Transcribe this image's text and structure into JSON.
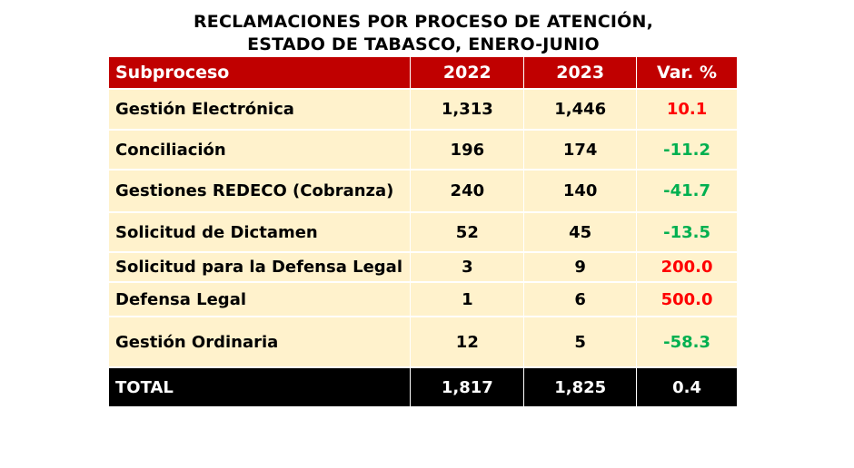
{
  "title_line1": "RECLAMACIONES POR PROCESO DE ATENCIÓN,",
  "title_line2": "ESTADO DE TABASCO, ENERO-JUNIO",
  "colors": {
    "header": "#c00000",
    "row": "#fff2cc",
    "increase": "#ff0000",
    "decrease": "#00b050",
    "total": "#000000"
  },
  "chart_data": {
    "type": "table",
    "columns": [
      "Subproceso",
      "2022",
      "2023",
      "Var. %"
    ],
    "rows": [
      [
        "Gestión Electrónica",
        "1,313",
        "1,446",
        "10.1"
      ],
      [
        "Conciliación",
        "196",
        "174",
        "-11.2"
      ],
      [
        "Gestiones REDECO (Cobranza)",
        "240",
        "140",
        "-41.7"
      ],
      [
        "Solicitud de Dictamen",
        "52",
        "45",
        "-13.5"
      ],
      [
        "Solicitud para la Defensa Legal",
        "3",
        "9",
        "200.0"
      ],
      [
        "Defensa Legal",
        "1",
        "6",
        "500.0"
      ],
      [
        "Gestión Ordinaria",
        "12",
        "5",
        "-58.3"
      ]
    ],
    "total": [
      "TOTAL",
      "1,817",
      "1,825",
      "0.4"
    ]
  }
}
